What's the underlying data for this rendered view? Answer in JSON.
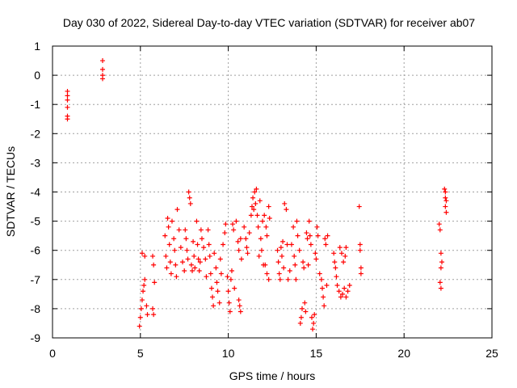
{
  "chart_data": {
    "type": "scatter",
    "title": "Day 030 of 2022, Sidereal Day-to-day VTEC variation (SDTVAR) for receiver ab07",
    "xlabel": "GPS time / hours",
    "ylabel": "SDTVAR / TECUs",
    "xlim": [
      0,
      25
    ],
    "ylim": [
      -9,
      1
    ],
    "xticks": [
      0,
      5,
      10,
      15,
      20,
      25
    ],
    "yticks": [
      1,
      0,
      -1,
      -2,
      -3,
      -4,
      -5,
      -6,
      -7,
      -8,
      -9
    ],
    "grid": true,
    "marker": "+",
    "color": "#ff0000",
    "series": [
      {
        "name": "SDTVAR",
        "points": [
          [
            0.85,
            -0.55
          ],
          [
            0.85,
            -0.7
          ],
          [
            0.85,
            -0.85
          ],
          [
            0.85,
            -1.1
          ],
          [
            0.85,
            -1.4
          ],
          [
            0.85,
            -1.5
          ],
          [
            2.85,
            0.5
          ],
          [
            2.85,
            0.2
          ],
          [
            2.85,
            0.0
          ],
          [
            2.85,
            -0.12
          ],
          [
            4.95,
            -8.6
          ],
          [
            5.0,
            -8.3
          ],
          [
            5.05,
            -8.0
          ],
          [
            5.1,
            -7.7
          ],
          [
            5.15,
            -7.4
          ],
          [
            5.2,
            -7.2
          ],
          [
            5.25,
            -7.0
          ],
          [
            5.1,
            -6.1
          ],
          [
            5.25,
            -6.2
          ],
          [
            5.35,
            -7.9
          ],
          [
            5.4,
            -8.2
          ],
          [
            5.7,
            -6.2
          ],
          [
            5.75,
            -6.5
          ],
          [
            5.8,
            -7.1
          ],
          [
            5.7,
            -8.0
          ],
          [
            5.75,
            -8.2
          ],
          [
            6.4,
            -5.5
          ],
          [
            6.45,
            -6.2
          ],
          [
            6.5,
            -6.6
          ],
          [
            6.55,
            -4.9
          ],
          [
            6.6,
            -5.2
          ],
          [
            6.65,
            -5.8
          ],
          [
            6.7,
            -6.4
          ],
          [
            6.75,
            -6.8
          ],
          [
            6.8,
            -5.0
          ],
          [
            6.9,
            -5.6
          ],
          [
            6.95,
            -6.0
          ],
          [
            7.0,
            -6.5
          ],
          [
            7.05,
            -6.9
          ],
          [
            7.1,
            -4.6
          ],
          [
            7.2,
            -5.3
          ],
          [
            7.3,
            -5.9
          ],
          [
            7.4,
            -6.4
          ],
          [
            7.5,
            -6.7
          ],
          [
            7.55,
            -5.3
          ],
          [
            7.6,
            -5.6
          ],
          [
            7.65,
            -6.0
          ],
          [
            7.7,
            -6.3
          ],
          [
            7.75,
            -4.0
          ],
          [
            7.8,
            -4.2
          ],
          [
            7.85,
            -4.4
          ],
          [
            7.9,
            -6.5
          ],
          [
            7.95,
            -6.7
          ],
          [
            8.0,
            -5.7
          ],
          [
            8.05,
            -6.2
          ],
          [
            8.1,
            -6.6
          ],
          [
            8.2,
            -5.0
          ],
          [
            8.25,
            -5.8
          ],
          [
            8.3,
            -6.3
          ],
          [
            8.35,
            -6.7
          ],
          [
            8.4,
            -6.4
          ],
          [
            8.45,
            -5.3
          ],
          [
            8.5,
            -5.6
          ],
          [
            8.6,
            -5.9
          ],
          [
            8.7,
            -6.3
          ],
          [
            8.75,
            -6.9
          ],
          [
            8.85,
            -5.3
          ],
          [
            8.9,
            -5.8
          ],
          [
            8.95,
            -6.2
          ],
          [
            9.0,
            -6.8
          ],
          [
            9.05,
            -7.3
          ],
          [
            9.1,
            -7.6
          ],
          [
            9.15,
            -7.9
          ],
          [
            9.2,
            -6.1
          ],
          [
            9.3,
            -6.6
          ],
          [
            9.35,
            -7.1
          ],
          [
            9.4,
            -7.4
          ],
          [
            9.5,
            -7.8
          ],
          [
            9.55,
            -6.3
          ],
          [
            9.6,
            -6.8
          ],
          [
            9.7,
            -5.8
          ],
          [
            9.8,
            -5.4
          ],
          [
            9.85,
            -5.1
          ],
          [
            9.95,
            -6.9
          ],
          [
            10.0,
            -7.4
          ],
          [
            10.05,
            -7.8
          ],
          [
            10.1,
            -8.1
          ],
          [
            10.15,
            -7.0
          ],
          [
            10.2,
            -6.7
          ],
          [
            10.25,
            -5.1
          ],
          [
            10.3,
            -5.3
          ],
          [
            10.35,
            -7.3
          ],
          [
            10.45,
            -5.0
          ],
          [
            10.6,
            -7.7
          ],
          [
            10.65,
            -7.9
          ],
          [
            10.7,
            -8.1
          ],
          [
            10.55,
            -5.7
          ],
          [
            10.6,
            -6.0
          ],
          [
            10.7,
            -5.6
          ],
          [
            10.75,
            -6.3
          ],
          [
            10.9,
            -5.2
          ],
          [
            11.0,
            -5.6
          ],
          [
            11.05,
            -5.9
          ],
          [
            11.1,
            -6.1
          ],
          [
            11.2,
            -5.4
          ],
          [
            11.3,
            -4.8
          ],
          [
            11.35,
            -4.5
          ],
          [
            11.4,
            -4.2
          ],
          [
            11.45,
            -4.6
          ],
          [
            11.5,
            -4.0
          ],
          [
            11.55,
            -4.4
          ],
          [
            11.6,
            -3.9
          ],
          [
            11.65,
            -4.8
          ],
          [
            11.7,
            -5.2
          ],
          [
            11.75,
            -6.2
          ],
          [
            11.8,
            -4.3
          ],
          [
            11.85,
            -5.6
          ],
          [
            11.9,
            -6.0
          ],
          [
            11.95,
            -5.0
          ],
          [
            12.0,
            -6.5
          ],
          [
            12.05,
            -4.8
          ],
          [
            12.15,
            -5.2
          ],
          [
            12.2,
            -5.5
          ],
          [
            12.3,
            -4.5
          ],
          [
            12.35,
            -4.9
          ],
          [
            12.1,
            -6.5
          ],
          [
            12.2,
            -6.8
          ],
          [
            12.3,
            -7.0
          ],
          [
            12.8,
            -6.0
          ],
          [
            12.85,
            -6.4
          ],
          [
            12.9,
            -6.8
          ],
          [
            12.95,
            -7.0
          ],
          [
            13.0,
            -5.9
          ],
          [
            13.05,
            -6.2
          ],
          [
            13.1,
            -5.7
          ],
          [
            13.15,
            -6.6
          ],
          [
            13.2,
            -4.4
          ],
          [
            13.3,
            -4.6
          ],
          [
            13.35,
            -5.8
          ],
          [
            13.4,
            -7.0
          ],
          [
            13.5,
            -6.7
          ],
          [
            13.6,
            -5.8
          ],
          [
            13.7,
            -5.2
          ],
          [
            13.75,
            -6.2
          ],
          [
            13.8,
            -6.5
          ],
          [
            13.85,
            -7.0
          ],
          [
            13.9,
            -5.0
          ],
          [
            13.95,
            -5.5
          ],
          [
            14.05,
            -6.0
          ],
          [
            14.1,
            -8.5
          ],
          [
            14.15,
            -8.3
          ],
          [
            14.2,
            -8.0
          ],
          [
            14.25,
            -6.4
          ],
          [
            14.3,
            -6.6
          ],
          [
            14.35,
            -7.8
          ],
          [
            14.4,
            -8.1
          ],
          [
            14.45,
            -5.4
          ],
          [
            14.5,
            -5.6
          ],
          [
            14.55,
            -6.5
          ],
          [
            14.6,
            -5.0
          ],
          [
            14.65,
            -5.5
          ],
          [
            14.7,
            -5.8
          ],
          [
            14.75,
            -8.3
          ],
          [
            14.8,
            -8.7
          ],
          [
            14.85,
            -8.5
          ],
          [
            14.9,
            -8.2
          ],
          [
            14.95,
            -6.1
          ],
          [
            15.0,
            -6.3
          ],
          [
            15.05,
            -5.2
          ],
          [
            15.1,
            -5.5
          ],
          [
            15.2,
            -6.8
          ],
          [
            15.3,
            -7.0
          ],
          [
            15.35,
            -7.3
          ],
          [
            15.4,
            -7.6
          ],
          [
            15.45,
            -7.9
          ],
          [
            15.5,
            -5.6
          ],
          [
            15.55,
            -5.8
          ],
          [
            15.6,
            -7.2
          ],
          [
            15.65,
            -5.5
          ],
          [
            16.0,
            -6.1
          ],
          [
            16.05,
            -6.4
          ],
          [
            16.1,
            -6.6
          ],
          [
            16.15,
            -6.9
          ],
          [
            16.2,
            -7.2
          ],
          [
            16.3,
            -7.4
          ],
          [
            16.4,
            -7.6
          ],
          [
            16.5,
            -7.5
          ],
          [
            16.6,
            -7.3
          ],
          [
            16.7,
            -7.6
          ],
          [
            16.8,
            -7.4
          ],
          [
            16.9,
            -7.2
          ],
          [
            16.35,
            -5.9
          ],
          [
            16.45,
            -6.1
          ],
          [
            16.55,
            -6.4
          ],
          [
            16.65,
            -6.2
          ],
          [
            16.7,
            -5.9
          ],
          [
            17.45,
            -4.5
          ],
          [
            17.5,
            -5.8
          ],
          [
            17.5,
            -6.0
          ],
          [
            17.55,
            -6.6
          ],
          [
            17.55,
            -6.8
          ],
          [
            22.0,
            -5.1
          ],
          [
            22.05,
            -5.3
          ],
          [
            22.1,
            -6.1
          ],
          [
            22.15,
            -6.4
          ],
          [
            22.1,
            -6.6
          ],
          [
            22.05,
            -7.1
          ],
          [
            22.1,
            -7.3
          ],
          [
            22.3,
            -3.9
          ],
          [
            22.35,
            -4.0
          ],
          [
            22.35,
            -4.2
          ],
          [
            22.4,
            -4.3
          ],
          [
            22.35,
            -4.5
          ],
          [
            22.4,
            -4.7
          ]
        ]
      }
    ]
  }
}
